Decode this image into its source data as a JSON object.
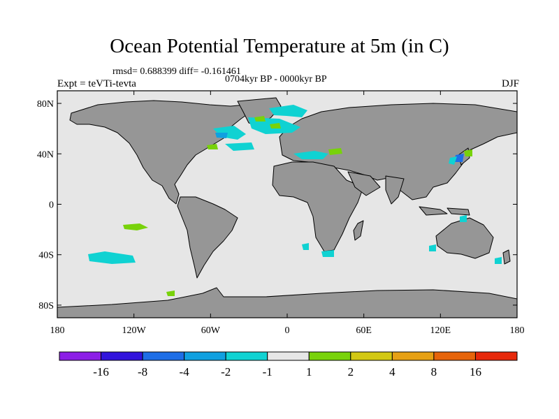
{
  "header": {
    "title": "Ocean Potential Temperature at 5m (in C)",
    "stats": "rmsd= 0.688399 diff= -0.161461",
    "period": "0704kyr BP - 0000kyr BP",
    "experiment": "Expt = teVTi-tevta",
    "season": "DJF"
  },
  "map": {
    "type": "filled-contour-map",
    "projection": "cylindrical-equidistant",
    "xlim": [
      -180,
      180
    ],
    "ylim": [
      -90,
      90
    ],
    "x_ticks": [
      "180",
      "120W",
      "60W",
      "0",
      "60E",
      "120E",
      "180"
    ],
    "y_ticks": [
      "80N",
      "40N",
      "0",
      "40S",
      "80S"
    ],
    "land_color": "#969696",
    "ocean_background_color": "#e6e6e6",
    "coastline_color": "#000000"
  },
  "colorbar": {
    "colors": [
      "#8c1ee6",
      "#3214dc",
      "#1e6ee6",
      "#10a0e0",
      "#10d2d2",
      "#e6e6e6",
      "#78d20a",
      "#d2c814",
      "#e6a014",
      "#e6640a",
      "#e6280a"
    ],
    "tick_labels": [
      "-16",
      "-8",
      "-4",
      "-2",
      "-1",
      "1",
      "2",
      "4",
      "8",
      "16"
    ]
  }
}
